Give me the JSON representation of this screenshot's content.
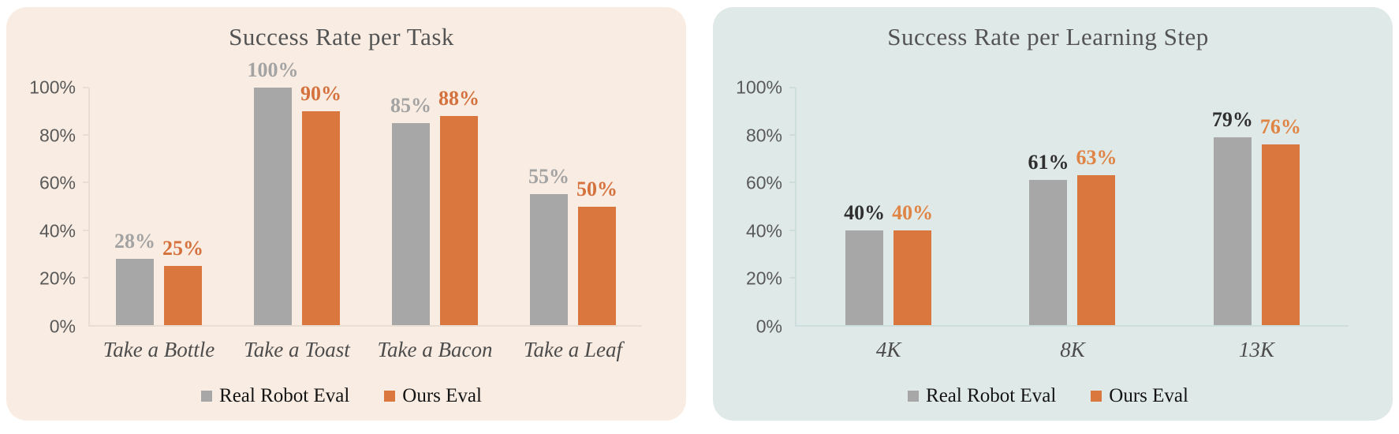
{
  "page": {
    "background": "#ffffff"
  },
  "chart_data": [
    {
      "type": "bar",
      "title": "Success Rate per Task",
      "panel_background": "#F9ECE2",
      "axis_color": "#E8DED4",
      "categories": [
        "Take a Bottle",
        "Take a Toast",
        "Take a Bacon",
        "Take a Leaf"
      ],
      "series": [
        {
          "name": "Real Robot Eval",
          "color": "#A7A7A7",
          "label_color": "#A3A3A3",
          "values": [
            28,
            100,
            85,
            55
          ]
        },
        {
          "name": "Ours Eval",
          "color": "#D9773F",
          "label_color": "#D4713C",
          "values": [
            25,
            90,
            88,
            50
          ]
        }
      ],
      "value_suffix": "%",
      "y_ticks": [
        "0%",
        "20%",
        "40%",
        "60%",
        "80%",
        "100%"
      ],
      "ylim": [
        0,
        100
      ],
      "grid": false,
      "legend_position": "bottom"
    },
    {
      "type": "bar",
      "title": "Success Rate per Learning Step",
      "panel_background": "#DFE9E7",
      "axis_color": "#CDDDDB",
      "categories": [
        "4K",
        "8K",
        "13K"
      ],
      "series": [
        {
          "name": "Real Robot Eval",
          "color": "#A7A7A7",
          "label_color": "#2F2F2F",
          "values": [
            40,
            61,
            79
          ]
        },
        {
          "name": "Ours Eval",
          "color": "#D9773F",
          "label_color": "#DF8445",
          "values": [
            40,
            63,
            76
          ]
        }
      ],
      "value_suffix": "%",
      "y_ticks": [
        "0%",
        "20%",
        "40%",
        "60%",
        "80%",
        "100%"
      ],
      "ylim": [
        0,
        100
      ],
      "grid": false,
      "legend_position": "bottom"
    }
  ]
}
